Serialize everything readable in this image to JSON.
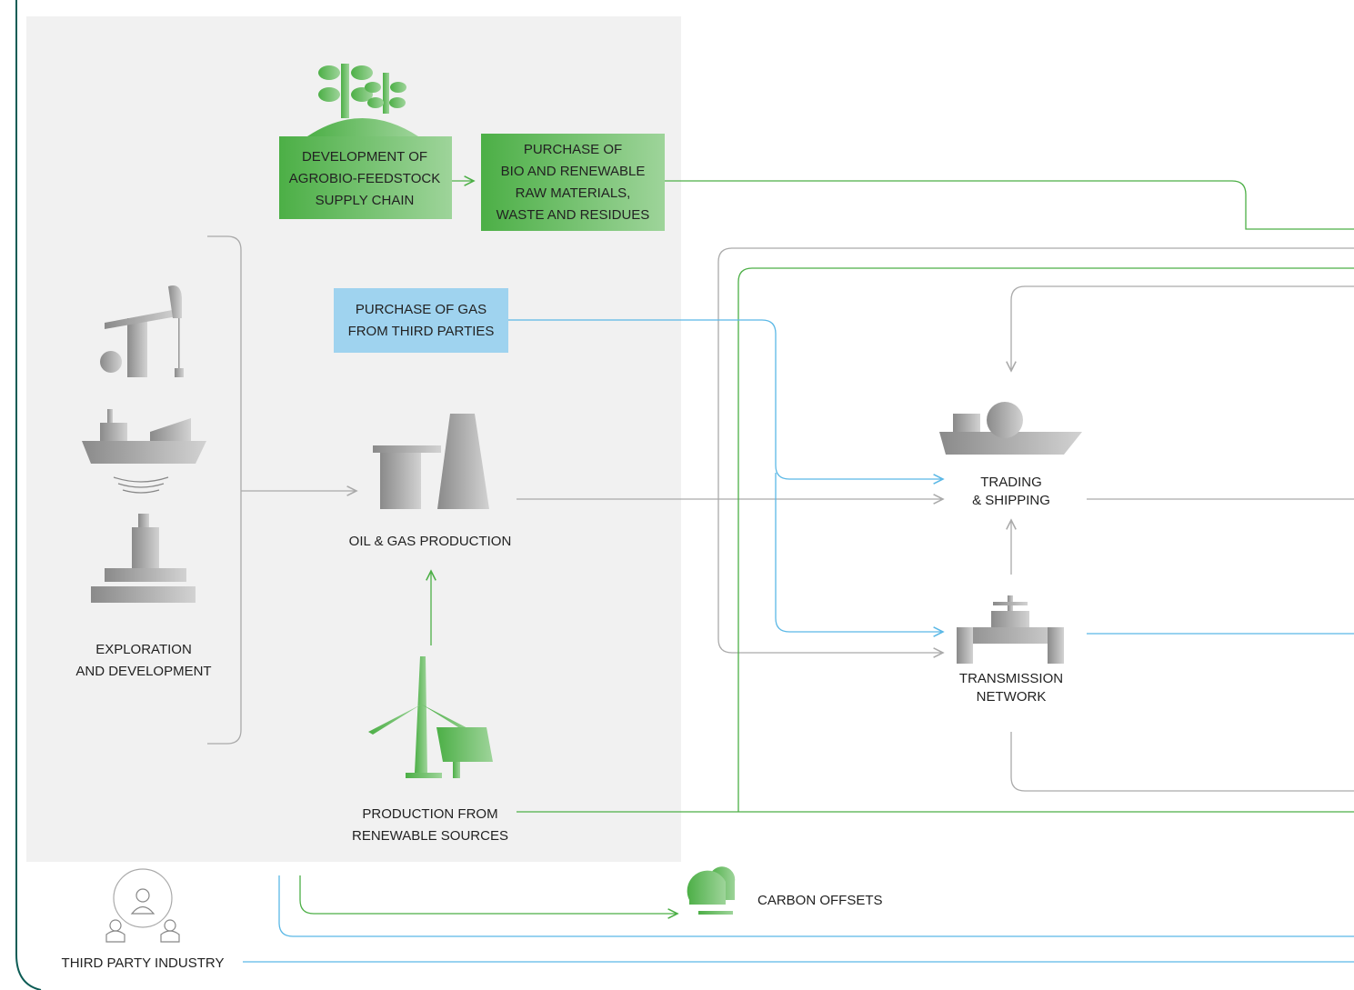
{
  "nodes": [
    {
      "lines": [
        "DEVELOPMENT OF",
        "AGROBIO-FEEDSTOCK",
        "SUPPLY CHAIN"
      ]
    },
    {
      "lines": [
        "PURCHASE OF",
        "BIO AND RENEWABLE",
        "RAW MATERIALS,",
        "WASTE AND RESIDUES"
      ]
    },
    {
      "lines": [
        "PURCHASE OF GAS",
        "FROM THIRD PARTIES"
      ]
    },
    {
      "lines": [
        "OIL & GAS PRODUCTION"
      ]
    },
    {
      "lines": [
        "EXPLORATION",
        "AND DEVELOPMENT"
      ]
    },
    {
      "lines": [
        "PRODUCTION FROM",
        "RENEWABLE SOURCES"
      ]
    },
    {
      "lines": [
        "TRADING",
        "& SHIPPING"
      ]
    },
    {
      "lines": [
        "TRANSMISSION",
        "NETWORK"
      ]
    },
    {
      "lines": [
        "CARBON OFFSETS"
      ]
    },
    {
      "lines": [
        "THIRD PARTY INDUSTRY"
      ]
    }
  ]
}
